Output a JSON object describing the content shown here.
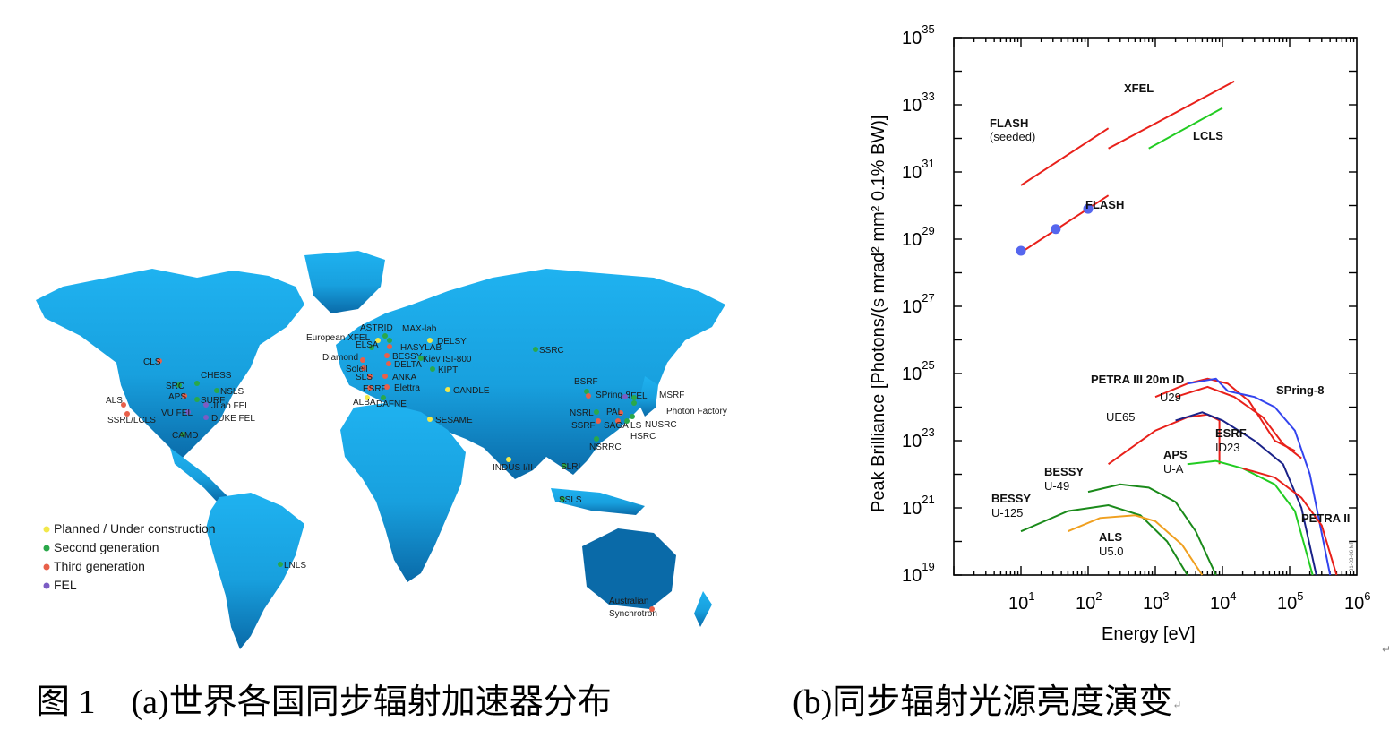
{
  "map": {
    "continent_color": "#1aa7e8",
    "legend": [
      {
        "label": "Planned / Under construction",
        "color": "#f2e84a"
      },
      {
        "label": "Second generation",
        "color": "#2aa84a"
      },
      {
        "label": "Third generation",
        "color": "#e8604a"
      },
      {
        "label": "FEL",
        "color": "#7b5cc4"
      }
    ],
    "facilities": [
      {
        "name": "CLS",
        "cat": 2
      },
      {
        "name": "SRC",
        "cat": 1
      },
      {
        "name": "CHESS",
        "cat": 1
      },
      {
        "name": "NSLS",
        "cat": 1
      },
      {
        "name": "APS",
        "cat": 2
      },
      {
        "name": "SURF",
        "cat": 1
      },
      {
        "name": "ALS",
        "cat": 2
      },
      {
        "name": "JLab FEL",
        "cat": 3
      },
      {
        "name": "VU FEL",
        "cat": 3
      },
      {
        "name": "SSRL/LCLS",
        "cat": 2
      },
      {
        "name": "DUKE FEL",
        "cat": 3
      },
      {
        "name": "CAMD",
        "cat": 1
      },
      {
        "name": "LNLS",
        "cat": 1
      },
      {
        "name": "ASTRID",
        "cat": 1
      },
      {
        "name": "MAX-lab",
        "cat": 1
      },
      {
        "name": "European XFEL",
        "cat": 0
      },
      {
        "name": "HASYLAB",
        "cat": 2
      },
      {
        "name": "DELSY",
        "cat": 0
      },
      {
        "name": "ELSA",
        "cat": 1
      },
      {
        "name": "BESSY",
        "cat": 2
      },
      {
        "name": "Diamond",
        "cat": 2
      },
      {
        "name": "DELTA",
        "cat": 2
      },
      {
        "name": "Kiev ISI-800",
        "cat": 1
      },
      {
        "name": "Soleil",
        "cat": 2
      },
      {
        "name": "KIPT",
        "cat": 1
      },
      {
        "name": "ANKA",
        "cat": 2
      },
      {
        "name": "SLS",
        "cat": 2
      },
      {
        "name": "ESRF",
        "cat": 2
      },
      {
        "name": "Elettra",
        "cat": 2
      },
      {
        "name": "CANDLE",
        "cat": 0
      },
      {
        "name": "ALBA",
        "cat": 0
      },
      {
        "name": "DAFNE",
        "cat": 1
      },
      {
        "name": "SESAME",
        "cat": 0
      },
      {
        "name": "SSRC",
        "cat": 1
      },
      {
        "name": "BSRF",
        "cat": 1
      },
      {
        "name": "SPring-8",
        "cat": 2
      },
      {
        "name": "iFEL",
        "cat": 3
      },
      {
        "name": "MSRF",
        "cat": 1
      },
      {
        "name": "Photon Factory",
        "cat": 1
      },
      {
        "name": "NSRL",
        "cat": 1
      },
      {
        "name": "PAL",
        "cat": 2
      },
      {
        "name": "SSRF",
        "cat": 2
      },
      {
        "name": "SAGA LS",
        "cat": 2
      },
      {
        "name": "NUSRC",
        "cat": 1
      },
      {
        "name": "HSRC",
        "cat": 1
      },
      {
        "name": "NSRRC",
        "cat": 1
      },
      {
        "name": "INDUS I/II",
        "cat": 0
      },
      {
        "name": "SLRI",
        "cat": 1
      },
      {
        "name": "SSLS",
        "cat": 1
      },
      {
        "name": "Australian",
        "cat": 2
      },
      {
        "name": "Synchrotron",
        "cat": 2
      }
    ]
  },
  "chart_data": {
    "type": "line",
    "xlabel": "Energy  [eV]",
    "ylabel": "Peak Brilliance  [Photons/(s mrad² mm² 0.1% BW)]",
    "xscale": "log",
    "yscale": "log",
    "xlim": [
      1,
      1000000
    ],
    "ylim": [
      1e+19,
      1e+35
    ],
    "xticks": [
      "10",
      "10",
      "10",
      "10",
      "10",
      "10"
    ],
    "xtick_exponents": [
      "1",
      "2",
      "3",
      "4",
      "5",
      "6"
    ],
    "yticks": [
      "10",
      "10",
      "10",
      "10",
      "10",
      "10",
      "10",
      "10",
      "10"
    ],
    "ytick_exponents": [
      "19",
      "21",
      "23",
      "25",
      "27",
      "29",
      "31",
      "33",
      "35"
    ],
    "series": [
      {
        "name": "FLASH",
        "sub": "(seeded)",
        "color": "#e8201a",
        "points": [
          [
            10,
            4e+30
          ],
          [
            200,
            2e+32
          ]
        ]
      },
      {
        "name": "XFEL",
        "color": "#e8201a",
        "points": [
          [
            200,
            5e+31
          ],
          [
            15000,
            5e+33
          ]
        ]
      },
      {
        "name": "LCLS",
        "color": "#22cc22",
        "points": [
          [
            800,
            5e+31
          ],
          [
            10000,
            8e+32
          ]
        ]
      },
      {
        "name": "FLASH",
        "color": "#e8201a",
        "points": [
          [
            10,
            4e+28
          ],
          [
            200,
            2e+30
          ]
        ],
        "markers": [
          [
            10,
            4.5e+28
          ],
          [
            33,
            2e+29
          ],
          [
            100,
            8e+29
          ]
        ],
        "marker_color": "#5566ee"
      },
      {
        "name": "PETRA III 20m ID",
        "color": "#e8201a",
        "points": [
          [
            1000,
            2e+24
          ],
          [
            3000,
            5e+24
          ],
          [
            6000,
            7e+24
          ],
          [
            12000,
            5e+24
          ],
          [
            25000,
            1.5e+24
          ],
          [
            60000,
            1e+23
          ],
          [
            120000,
            5e+22
          ]
        ]
      },
      {
        "name": "U29",
        "color": "#e8201a",
        "points": [
          [
            2000,
            2e+24
          ],
          [
            6000,
            4e+24
          ],
          [
            15000,
            2e+24
          ],
          [
            40000,
            5e+23
          ],
          [
            80000,
            8e+22
          ],
          [
            150000,
            3e+22
          ]
        ]
      },
      {
        "name": "UE65",
        "color": "#e8201a",
        "points": [
          [
            200,
            2e+22
          ],
          [
            1000,
            2e+23
          ],
          [
            3000,
            5e+23
          ],
          [
            6000,
            6e+23
          ],
          [
            9000,
            4e+23
          ],
          [
            9000,
            2e+22
          ]
        ]
      },
      {
        "name": "SPring-8",
        "color": "#3344ee",
        "points": [
          [
            3000,
            5e+24
          ],
          [
            8000,
            7e+24
          ],
          [
            12000,
            3e+24
          ],
          [
            30000,
            2e+24
          ],
          [
            60000,
            1e+24
          ],
          [
            120000,
            2e+23
          ],
          [
            200000,
            1e+22
          ],
          [
            400000,
            1e+19
          ]
        ]
      },
      {
        "name": "ESRF",
        "sub": "ID23",
        "color": "#1a2288",
        "points": [
          [
            2000,
            4e+23
          ],
          [
            5000,
            7e+23
          ],
          [
            10000,
            4e+23
          ],
          [
            30000,
            1e+23
          ],
          [
            80000,
            2e+22
          ],
          [
            150000,
            1e+21
          ],
          [
            250000,
            1e+19
          ]
        ]
      },
      {
        "name": "APS",
        "sub": "U-A",
        "color": "#22cc22",
        "points": [
          [
            3000,
            2e+22
          ],
          [
            8000,
            2.5e+22
          ],
          [
            20000,
            1.5e+22
          ],
          [
            60000,
            5e+21
          ],
          [
            120000,
            8e+20
          ],
          [
            220000,
            1e+19
          ]
        ]
      },
      {
        "name": "PETRA II",
        "color": "#e8201a",
        "points": [
          [
            20000,
            1.5e+22
          ],
          [
            60000,
            8e+21
          ],
          [
            150000,
            2e+21
          ],
          [
            300000,
            3e+20
          ],
          [
            500000,
            1e+19
          ]
        ]
      },
      {
        "name": "BESSY",
        "sub": "U-49",
        "color": "#1a8a1a",
        "points": [
          [
            100,
            3e+21
          ],
          [
            300,
            5e+21
          ],
          [
            800,
            4e+21
          ],
          [
            2000,
            1.5e+21
          ],
          [
            4000,
            2e+20
          ],
          [
            8000,
            1e+19
          ]
        ]
      },
      {
        "name": "BESSY",
        "sub": "U-125",
        "color": "#1a8a1a",
        "points": [
          [
            10,
            2e+20
          ],
          [
            50,
            8e+20
          ],
          [
            200,
            1.2e+21
          ],
          [
            600,
            6e+20
          ],
          [
            1500,
            1e+20
          ],
          [
            3000,
            1e+19
          ]
        ]
      },
      {
        "name": "ALS",
        "sub": "U5.0",
        "color": "#f0a020",
        "points": [
          [
            50,
            2e+20
          ],
          [
            150,
            5e+20
          ],
          [
            500,
            6e+20
          ],
          [
            1000,
            4e+20
          ],
          [
            2500,
            8e+19
          ],
          [
            5000,
            1e+19
          ]
        ]
      }
    ],
    "watermark": "01-03-06 MF"
  },
  "captions": {
    "fig_num": "图 1",
    "a": "(a)世界各国同步辐射加速器分布",
    "b": "(b)同步辐射光源亮度演变",
    "return_mark": "↵"
  }
}
